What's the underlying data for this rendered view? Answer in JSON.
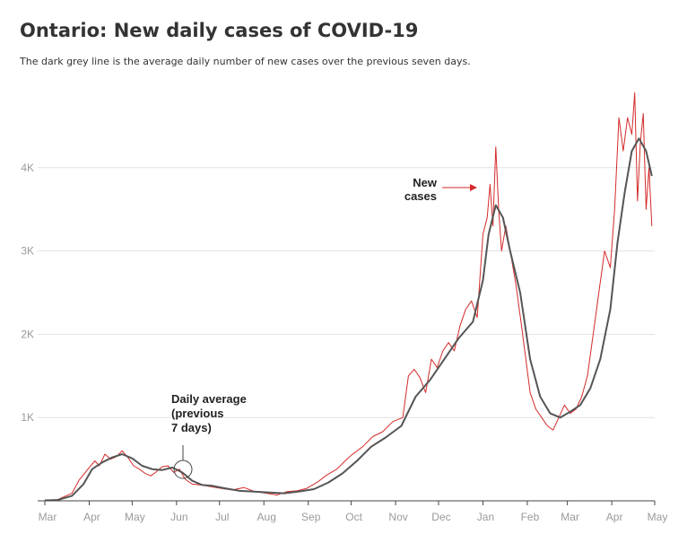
{
  "chart_data": {
    "type": "line",
    "title": "Ontario: New daily cases of COVID-19",
    "subtitle": "The dark grey line is the average daily number of new cases over the previous seven days.",
    "xlabel": "",
    "ylabel": "",
    "x_ticks": [
      "Mar",
      "Apr",
      "May",
      "Jun",
      "Jul",
      "Aug",
      "Sep",
      "Oct",
      "Nov",
      "Dec",
      "Jan",
      "Feb",
      "Mar",
      "Apr",
      "May"
    ],
    "y_ticks": [
      "1K",
      "2K",
      "3K",
      "4K"
    ],
    "ylim": [
      0,
      5000
    ],
    "grid": true,
    "colors": {
      "daily": "#d42a2a",
      "average": "#555555"
    },
    "series": [
      {
        "name": "New cases",
        "x": [
          "2020-03-01",
          "2020-03-10",
          "2020-03-20",
          "2020-03-25",
          "2020-04-01",
          "2020-04-05",
          "2020-04-08",
          "2020-04-12",
          "2020-04-16",
          "2020-04-20",
          "2020-04-24",
          "2020-04-28",
          "2020-05-02",
          "2020-05-06",
          "2020-05-10",
          "2020-05-14",
          "2020-05-18",
          "2020-05-22",
          "2020-05-26",
          "2020-05-30",
          "2020-06-03",
          "2020-06-07",
          "2020-06-12",
          "2020-06-18",
          "2020-06-25",
          "2020-07-02",
          "2020-07-10",
          "2020-07-18",
          "2020-07-26",
          "2020-08-03",
          "2020-08-10",
          "2020-08-17",
          "2020-08-24",
          "2020-08-31",
          "2020-09-07",
          "2020-09-14",
          "2020-09-21",
          "2020-09-28",
          "2020-10-02",
          "2020-10-09",
          "2020-10-16",
          "2020-10-23",
          "2020-10-30",
          "2020-11-06",
          "2020-11-10",
          "2020-11-14",
          "2020-11-18",
          "2020-11-22",
          "2020-11-26",
          "2020-11-30",
          "2020-12-04",
          "2020-12-08",
          "2020-12-12",
          "2020-12-16",
          "2020-12-20",
          "2020-12-24",
          "2020-12-28",
          "2021-01-01",
          "2021-01-04",
          "2021-01-06",
          "2021-01-08",
          "2021-01-10",
          "2021-01-12",
          "2021-01-14",
          "2021-01-17",
          "2021-01-20",
          "2021-01-24",
          "2021-01-28",
          "2021-01-31",
          "2021-02-03",
          "2021-02-07",
          "2021-02-11",
          "2021-02-15",
          "2021-02-19",
          "2021-02-23",
          "2021-02-27",
          "2021-03-03",
          "2021-03-07",
          "2021-03-11",
          "2021-03-15",
          "2021-03-19",
          "2021-03-23",
          "2021-03-27",
          "2021-03-31",
          "2021-04-03",
          "2021-04-06",
          "2021-04-09",
          "2021-04-12",
          "2021-04-15",
          "2021-04-17",
          "2021-04-19",
          "2021-04-21",
          "2021-04-23",
          "2021-04-25",
          "2021-04-27",
          "2021-04-29"
        ],
        "y": [
          5,
          15,
          90,
          250,
          400,
          480,
          420,
          560,
          500,
          530,
          600,
          520,
          420,
          380,
          330,
          300,
          350,
          410,
          420,
          340,
          380,
          260,
          200,
          190,
          170,
          150,
          130,
          160,
          110,
          90,
          70,
          110,
          120,
          150,
          220,
          310,
          380,
          500,
          560,
          650,
          770,
          830,
          950,
          1000,
          1500,
          1580,
          1480,
          1300,
          1700,
          1600,
          1800,
          1900,
          1800,
          2100,
          2300,
          2400,
          2200,
          3200,
          3400,
          3800,
          3300,
          4250,
          3500,
          3000,
          3300,
          3000,
          2600,
          2100,
          1700,
          1300,
          1100,
          1000,
          900,
          850,
          1000,
          1150,
          1050,
          1100,
          1250,
          1500,
          2000,
          2500,
          3000,
          2800,
          3500,
          4600,
          4200,
          4600,
          4400,
          4900,
          3600,
          4300,
          4650,
          3500,
          4000,
          3300
        ]
      },
      {
        "name": "Daily average (previous 7 days)",
        "x": [
          "2020-03-01",
          "2020-03-10",
          "2020-03-20",
          "2020-03-28",
          "2020-04-03",
          "2020-04-10",
          "2020-04-17",
          "2020-04-24",
          "2020-05-01",
          "2020-05-08",
          "2020-05-15",
          "2020-05-22",
          "2020-05-29",
          "2020-06-05",
          "2020-06-12",
          "2020-06-19",
          "2020-06-26",
          "2020-07-05",
          "2020-07-15",
          "2020-07-25",
          "2020-08-05",
          "2020-08-15",
          "2020-08-25",
          "2020-09-05",
          "2020-09-15",
          "2020-09-25",
          "2020-10-05",
          "2020-10-15",
          "2020-10-25",
          "2020-11-05",
          "2020-11-15",
          "2020-11-25",
          "2020-12-05",
          "2020-12-15",
          "2020-12-25",
          "2021-01-01",
          "2021-01-05",
          "2021-01-10",
          "2021-01-15",
          "2021-01-20",
          "2021-01-27",
          "2021-02-03",
          "2021-02-10",
          "2021-02-17",
          "2021-02-24",
          "2021-03-03",
          "2021-03-10",
          "2021-03-17",
          "2021-03-24",
          "2021-03-31",
          "2021-04-05",
          "2021-04-10",
          "2021-04-15",
          "2021-04-20",
          "2021-04-25",
          "2021-04-29"
        ],
        "y": [
          5,
          10,
          60,
          200,
          380,
          460,
          520,
          560,
          510,
          420,
          380,
          370,
          400,
          340,
          240,
          190,
          180,
          150,
          120,
          110,
          100,
          90,
          110,
          140,
          220,
          330,
          480,
          650,
          760,
          900,
          1250,
          1450,
          1700,
          1950,
          2150,
          2650,
          3200,
          3550,
          3400,
          3000,
          2500,
          1700,
          1250,
          1050,
          1000,
          1070,
          1150,
          1350,
          1700,
          2300,
          3100,
          3700,
          4200,
          4350,
          4200,
          3900
        ]
      }
    ],
    "annotations": {
      "new_cases": [
        "New",
        "cases"
      ],
      "daily_average": [
        "Daily average",
        "(previous",
        "7 days)"
      ]
    }
  }
}
